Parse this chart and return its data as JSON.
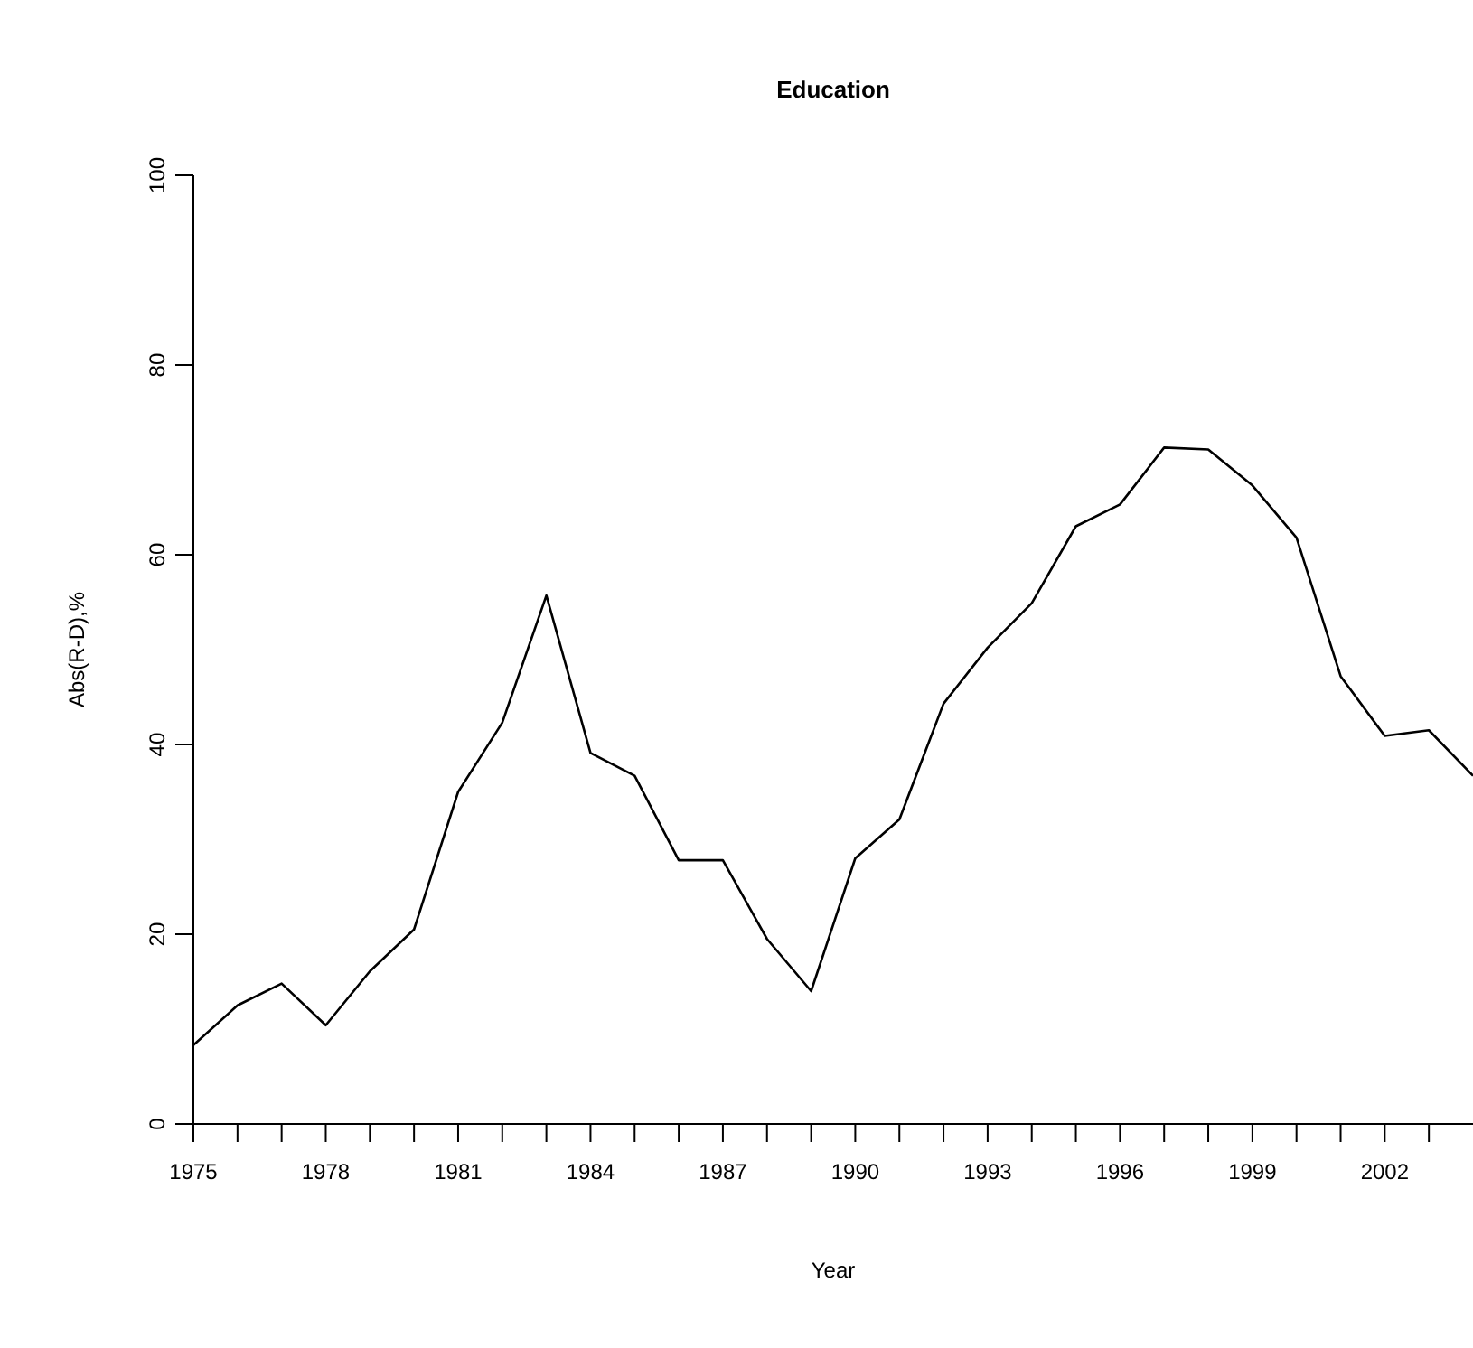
{
  "chart_data": {
    "type": "line",
    "title": "Education",
    "xlabel": "Year",
    "ylabel": "Abs(R-D),%",
    "x": [
      1975,
      1976,
      1977,
      1978,
      1979,
      1980,
      1981,
      1982,
      1983,
      1984,
      1985,
      1986,
      1987,
      1988,
      1989,
      1990,
      1991,
      1992,
      1993,
      1994,
      1995,
      1996,
      1997,
      1998,
      1999,
      2000,
      2001,
      2002,
      2003,
      2004
    ],
    "series": [
      {
        "color": "#000000",
        "values": [
          8.3,
          12.5,
          14.8,
          10.4,
          16.1,
          20.5,
          35,
          42.3,
          55.7,
          39.1,
          36.7,
          27.8,
          27.8,
          19.5,
          14,
          28,
          32.1,
          44.3,
          50.2,
          54.9,
          63,
          65.3,
          71.3,
          71.1,
          67.3,
          61.8,
          47.2,
          40.9,
          41.5,
          36.7
        ]
      }
    ],
    "xlim": [
      1975,
      2004
    ],
    "xticks": [
      1975,
      {
        "value": 1976,
        "label": null
      },
      {
        "value": 1977,
        "label": null
      },
      1978,
      {
        "value": 1979,
        "label": null
      },
      {
        "value": 1980,
        "label": null
      },
      1981,
      {
        "value": 1982,
        "label": null
      },
      {
        "value": 1983,
        "label": null
      },
      1984,
      {
        "value": 1985,
        "label": null
      },
      {
        "value": 1986,
        "label": null
      },
      1987,
      {
        "value": 1988,
        "label": null
      },
      {
        "value": 1989,
        "label": null
      },
      1990,
      {
        "value": 1991,
        "label": null
      },
      {
        "value": 1992,
        "label": null
      },
      1993,
      {
        "value": 1994,
        "label": null
      },
      {
        "value": 1995,
        "label": null
      },
      1996,
      {
        "value": 1997,
        "label": null
      },
      {
        "value": 1998,
        "label": null
      },
      1999,
      {
        "value": 2000,
        "label": null
      },
      {
        "value": 2001,
        "label": null
      },
      2002,
      {
        "value": 2003,
        "label": null
      }
    ],
    "ylim": [
      0,
      100
    ],
    "yticks": [
      0,
      20,
      40,
      60,
      80,
      100
    ],
    "grid": false,
    "legend": false,
    "marker": "none",
    "line_style": "solid"
  }
}
